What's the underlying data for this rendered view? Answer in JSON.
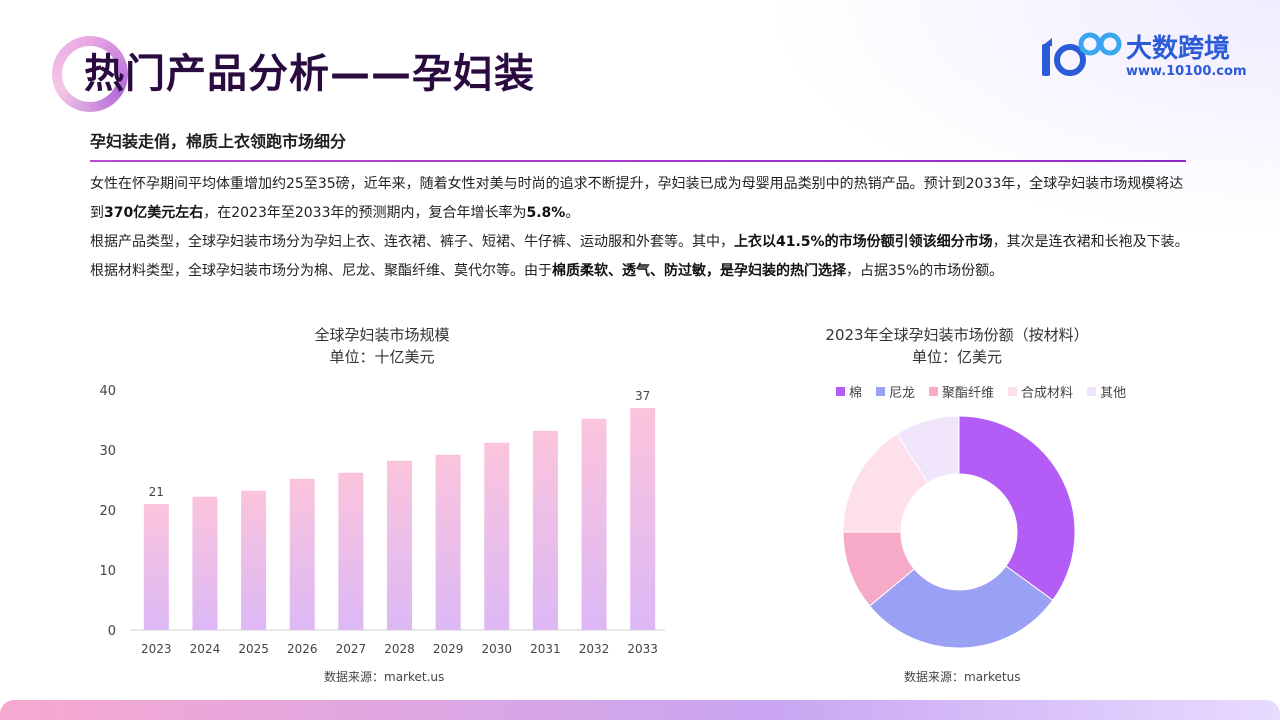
{
  "page": {
    "title": "热门产品分析——孕妇装",
    "subtitle": "孕妇装走俏，棉质上衣领跑市场细分"
  },
  "logo": {
    "name": "大数跨境",
    "url": "www.10100.com"
  },
  "body": {
    "p1_a": "女性在怀孕期间平均体重增加约25至35磅，近年来，随着女性对美与时尚的追求不断提升，孕妇装已成为母婴用品类别中的热销产品。预计到2033年，全球孕妇装市场规模将达到",
    "p1_b": "370亿美元左右",
    "p1_c": "，在2023年至2033年的预测期内，复合年增长率为",
    "p1_d": "5.8%",
    "p1_e": "。",
    "p2_a": "根据产品类型，全球孕妇装市场分为孕妇上衣、连衣裙、裤子、短裙、牛仔裤、运动服和外套等。其中，",
    "p2_b": "上衣以41.5%的市场份额引领该细分市场",
    "p2_c": "，其次是连衣裙和长袍及下装。根据材料类型，全球孕妇装市场分为棉、尼龙、聚酯纤维、莫代尔等。由于",
    "p2_d": "棉质柔软、透气、防过敏，是孕妇装的热门选择",
    "p2_e": "，占据35%的市场份额。"
  },
  "chart_data": [
    {
      "type": "bar",
      "title": "全球孕妇装市场规模",
      "subtitle": "单位：十亿美元",
      "categories": [
        "2023",
        "2024",
        "2025",
        "2026",
        "2027",
        "2028",
        "2029",
        "2030",
        "2031",
        "2032",
        "2033"
      ],
      "values": [
        21,
        22.2,
        23.2,
        25.2,
        26.2,
        28.2,
        29.2,
        31.2,
        33.2,
        35.2,
        37
      ],
      "data_labels": {
        "2023": "21",
        "2033": "37"
      },
      "yticks": [
        0,
        10,
        20,
        30,
        40
      ],
      "ylim": [
        0,
        40
      ],
      "grid": false,
      "source": "数据来源：market.us",
      "colors": {
        "bar_top": "#fbc4dc",
        "bar_bottom": "#dcb8f5"
      }
    },
    {
      "type": "pie",
      "donut": true,
      "title": "2023年全球孕妇装市场份额（按材料）",
      "subtitle": "单位：亿美元",
      "legend_position": "top",
      "slices": [
        {
          "label": "棉",
          "value": 35,
          "color": "#b45cf6"
        },
        {
          "label": "尼龙",
          "value": 29,
          "color": "#9aa0f4"
        },
        {
          "label": "聚酯纤维",
          "value": 11,
          "color": "#f7a9c8"
        },
        {
          "label": "合成材料",
          "value": 16,
          "color": "#fde0ea"
        },
        {
          "label": "其他",
          "value": 9,
          "color": "#f1e5fb"
        }
      ],
      "source": "数据来源：marketus"
    }
  ]
}
